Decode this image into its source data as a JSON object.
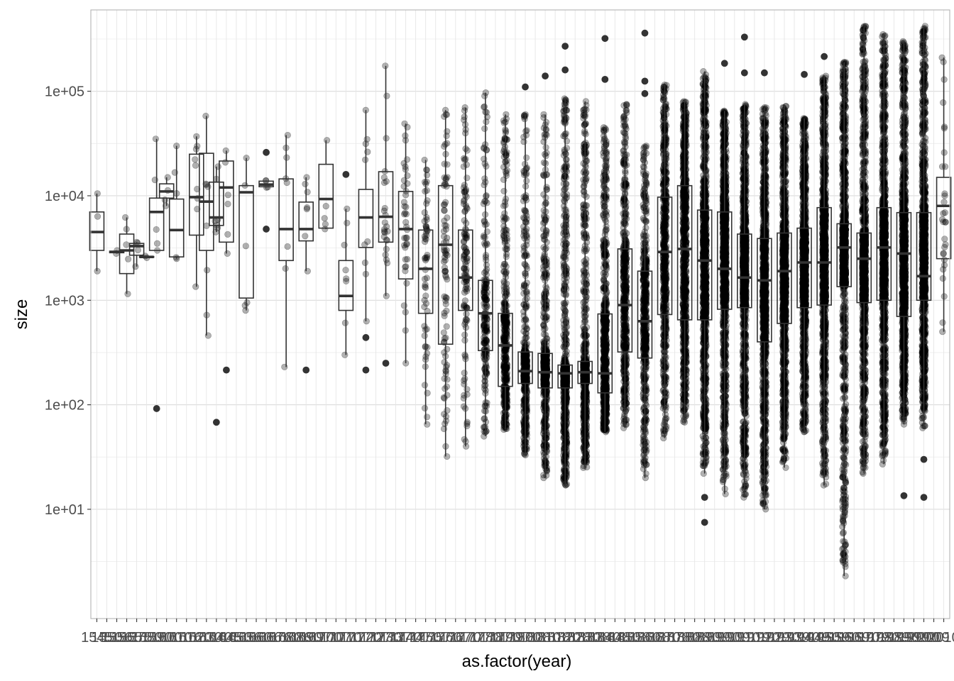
{
  "chart_data": {
    "type": "boxplot",
    "xlabel": "as.factor(year)",
    "ylabel": "size",
    "y_scale": "log10",
    "y_ticks": [
      "1e+01",
      "1e+02",
      "1e+03",
      "1e+04",
      "1e+05"
    ],
    "y_tick_values": [
      10,
      100,
      1000,
      10000,
      100000
    ],
    "ylim": [
      0.9,
      600000
    ],
    "categories": [
      "1545",
      "1550",
      "1556",
      "1565",
      "1575",
      "1580",
      "1590",
      "1600",
      "1610",
      "1616",
      "1620",
      "1630",
      "1640",
      "1645",
      "1650",
      "1656",
      "1660",
      "1666",
      "1676",
      "1680",
      "1686",
      "1690",
      "1697",
      "1700",
      "1707",
      "1710",
      "1717",
      "1720",
      "1727",
      "1730",
      "1737",
      "1740",
      "1747",
      "1750",
      "1757",
      "1760",
      "1767",
      "1770",
      "1777",
      "1780",
      "1787",
      "1790",
      "1797",
      "1800",
      "1808",
      "1810",
      "1818",
      "1820",
      "1828",
      "1830",
      "1838",
      "1840",
      "1848",
      "1850",
      "1858",
      "1860",
      "1868",
      "1870",
      "1878",
      "1880",
      "1888",
      "1890",
      "1899",
      "1900",
      "1909",
      "1910",
      "1919",
      "1920",
      "1929",
      "1930",
      "1939",
      "1940",
      "1949",
      "1950",
      "1959",
      "1960",
      "1969",
      "1970",
      "1979",
      "1980",
      "1989",
      "1990",
      "1999",
      "2000",
      "2009",
      "2010"
    ],
    "boxes": [
      {
        "x": "1545",
        "lower": 1900,
        "q1": 3000,
        "median": 4500,
        "q3": 7000,
        "upper": 10500,
        "n_points": 3,
        "outliers": []
      },
      {
        "x": "1556",
        "lower": 2800,
        "q1": 2850,
        "median": 2900,
        "q3": 2950,
        "upper": 3000,
        "n_points": 2,
        "outliers": []
      },
      {
        "x": "1565",
        "lower": 1150,
        "q1": 1800,
        "median": 3000,
        "q3": 4300,
        "upper": 6200,
        "n_points": 5,
        "outliers": []
      },
      {
        "x": "1575",
        "lower": 2100,
        "q1": 2700,
        "median": 3300,
        "q3": 3500,
        "upper": 3600,
        "n_points": 4,
        "outliers": []
      },
      {
        "x": "1580",
        "lower": 2550,
        "q1": 2580,
        "median": 2600,
        "q3": 2620,
        "upper": 2650,
        "n_points": 2,
        "outliers": []
      },
      {
        "x": "1590",
        "lower": 3000,
        "q1": 3000,
        "median": 7000,
        "q3": 9500,
        "upper": 35000,
        "n_points": 5,
        "outliers": [
          92
        ]
      },
      {
        "x": "1600",
        "lower": 8000,
        "q1": 9500,
        "median": 11000,
        "q3": 13000,
        "upper": 15000,
        "n_points": 4,
        "outliers": []
      },
      {
        "x": "1610",
        "lower": 2500,
        "q1": 2600,
        "median": 4700,
        "q3": 9300,
        "upper": 30000,
        "n_points": 5,
        "outliers": []
      },
      {
        "x": "1620",
        "lower": 1350,
        "q1": 4200,
        "median": 9700,
        "q3": 25000,
        "upper": 37000,
        "n_points": 9,
        "outliers": []
      },
      {
        "x": "1630",
        "lower": 460,
        "q1": 3000,
        "median": 8800,
        "q3": 25500,
        "upper": 58000,
        "n_points": 8,
        "outliers": []
      },
      {
        "x": "1640",
        "lower": 4500,
        "q1": 5200,
        "median": 6200,
        "q3": 13500,
        "upper": 19000,
        "n_points": 7,
        "outliers": [
          68
        ]
      },
      {
        "x": "1645",
        "lower": 2800,
        "q1": 3600,
        "median": 12000,
        "q3": 21500,
        "upper": 27000,
        "n_points": 6,
        "outliers": [
          215
        ]
      },
      {
        "x": "1656",
        "lower": 800,
        "q1": 1050,
        "median": 10800,
        "q3": 12500,
        "upper": 23000,
        "n_points": 6,
        "outliers": []
      },
      {
        "x": "1666",
        "lower": 12000,
        "q1": 12200,
        "median": 12800,
        "q3": 13800,
        "upper": 14000,
        "n_points": 4,
        "outliers": [
          4800,
          26000
        ]
      },
      {
        "x": "1680",
        "lower": 230,
        "q1": 2400,
        "median": 4800,
        "q3": 14500,
        "upper": 38000,
        "n_points": 8,
        "outliers": []
      },
      {
        "x": "1690",
        "lower": 1900,
        "q1": 3700,
        "median": 4800,
        "q3": 8700,
        "upper": 15000,
        "n_points": 7,
        "outliers": [
          215
        ]
      },
      {
        "x": "1700",
        "lower": 4800,
        "q1": 4900,
        "median": 9300,
        "q3": 20000,
        "upper": 34000,
        "n_points": 5,
        "outliers": []
      },
      {
        "x": "1710",
        "lower": 300,
        "q1": 800,
        "median": 1100,
        "q3": 2400,
        "upper": 7500,
        "n_points": 8,
        "outliers": [
          16000
        ]
      },
      {
        "x": "1720",
        "lower": 630,
        "q1": 3200,
        "median": 6200,
        "q3": 11500,
        "upper": 66000,
        "n_points": 10,
        "outliers": [
          215,
          440
        ]
      },
      {
        "x": "1730",
        "lower": 1100,
        "q1": 3600,
        "median": 6300,
        "q3": 17000,
        "upper": 175000,
        "n_points": 24,
        "outliers": [
          250
        ]
      },
      {
        "x": "1740",
        "lower": 250,
        "q1": 1600,
        "median": 4800,
        "q3": 11000,
        "upper": 49000,
        "n_points": 40,
        "outliers": []
      },
      {
        "x": "1750",
        "lower": 65,
        "q1": 750,
        "median": 2000,
        "q3": 4700,
        "upper": 22000,
        "n_points": 60,
        "outliers": []
      },
      {
        "x": "1760",
        "lower": 32,
        "q1": 380,
        "median": 3400,
        "q3": 12500,
        "upper": 66000,
        "n_points": 90,
        "outliers": []
      },
      {
        "x": "1770",
        "lower": 40,
        "q1": 800,
        "median": 1650,
        "q3": 4700,
        "upper": 70000,
        "n_points": 120,
        "outliers": []
      },
      {
        "x": "1780",
        "lower": 50,
        "q1": 330,
        "median": 750,
        "q3": 1550,
        "upper": 97000,
        "n_points": 200,
        "outliers": []
      },
      {
        "x": "1790",
        "lower": 58,
        "q1": 150,
        "median": 370,
        "q3": 750,
        "upper": 60000,
        "n_points": 400,
        "outliers": []
      },
      {
        "x": "1800",
        "lower": 33,
        "q1": 160,
        "median": 210,
        "q3": 320,
        "upper": 60000,
        "n_points": 500,
        "outliers": [
          110000
        ]
      },
      {
        "x": "1810",
        "lower": 20,
        "q1": 145,
        "median": 205,
        "q3": 310,
        "upper": 60000,
        "n_points": 600,
        "outliers": [
          140000
        ]
      },
      {
        "x": "1820",
        "lower": 17,
        "q1": 145,
        "median": 200,
        "q3": 240,
        "upper": 85000,
        "n_points": 900,
        "outliers": [
          160000,
          270000
        ]
      },
      {
        "x": "1830",
        "lower": 25,
        "q1": 160,
        "median": 205,
        "q3": 260,
        "upper": 80000,
        "n_points": 900,
        "outliers": []
      },
      {
        "x": "1840",
        "lower": 55,
        "q1": 130,
        "median": 200,
        "q3": 740,
        "upper": 45000,
        "n_points": 700,
        "outliers": [
          130000,
          320000
        ]
      },
      {
        "x": "1850",
        "lower": 60,
        "q1": 320,
        "median": 900,
        "q3": 3100,
        "upper": 75000,
        "n_points": 500,
        "outliers": []
      },
      {
        "x": "1860",
        "lower": 20,
        "q1": 280,
        "median": 630,
        "q3": 1900,
        "upper": 30000,
        "n_points": 500,
        "outliers": [
          95000,
          125000,
          360000
        ]
      },
      {
        "x": "1870",
        "lower": 48,
        "q1": 730,
        "median": 2900,
        "q3": 9700,
        "upper": 115000,
        "n_points": 600,
        "outliers": []
      },
      {
        "x": "1880",
        "lower": 68,
        "q1": 650,
        "median": 3100,
        "q3": 12500,
        "upper": 80000,
        "n_points": 800,
        "outliers": []
      },
      {
        "x": "1890",
        "lower": 22,
        "q1": 650,
        "median": 2400,
        "q3": 7300,
        "upper": 155000,
        "n_points": 1000,
        "outliers": [
          7.5,
          13
        ]
      },
      {
        "x": "1900",
        "lower": 14,
        "q1": 820,
        "median": 2000,
        "q3": 7000,
        "upper": 65000,
        "n_points": 1200,
        "outliers": [
          185000
        ]
      },
      {
        "x": "1910",
        "lower": 13,
        "q1": 850,
        "median": 1650,
        "q3": 4300,
        "upper": 75000,
        "n_points": 1200,
        "outliers": [
          150000,
          330000
        ]
      },
      {
        "x": "1920",
        "lower": 10,
        "q1": 400,
        "median": 1550,
        "q3": 3900,
        "upper": 70000,
        "n_points": 1200,
        "outliers": [
          150000
        ]
      },
      {
        "x": "1930",
        "lower": 25,
        "q1": 600,
        "median": 1900,
        "q3": 4400,
        "upper": 72000,
        "n_points": 1500,
        "outliers": []
      },
      {
        "x": "1940",
        "lower": 55,
        "q1": 850,
        "median": 2300,
        "q3": 4900,
        "upper": 55000,
        "n_points": 1800,
        "outliers": [
          145000
        ]
      },
      {
        "x": "1950",
        "lower": 17,
        "q1": 900,
        "median": 2300,
        "q3": 7700,
        "upper": 140000,
        "n_points": 2500,
        "outliers": [
          215000
        ]
      },
      {
        "x": "1960",
        "lower": 2.3,
        "q1": 1350,
        "median": 3200,
        "q3": 5400,
        "upper": 190000,
        "n_points": 3500,
        "outliers": []
      },
      {
        "x": "1970",
        "lower": 22,
        "q1": 950,
        "median": 2500,
        "q3": 4400,
        "upper": 420000,
        "n_points": 4000,
        "outliers": []
      },
      {
        "x": "1980",
        "lower": 27,
        "q1": 1000,
        "median": 3200,
        "q3": 7700,
        "upper": 350000,
        "n_points": 3500,
        "outliers": []
      },
      {
        "x": "1990",
        "lower": 65,
        "q1": 700,
        "median": 2800,
        "q3": 6900,
        "upper": 300000,
        "n_points": 3000,
        "outliers": [
          13.5
        ]
      },
      {
        "x": "2000",
        "lower": 60,
        "q1": 1000,
        "median": 1700,
        "q3": 6900,
        "upper": 420000,
        "n_points": 2500,
        "outliers": [
          13,
          30
        ]
      },
      {
        "x": "2010",
        "lower": 500,
        "q1": 2500,
        "median": 8000,
        "q3": 15000,
        "upper": 210000,
        "n_points": 30,
        "outliers": []
      }
    ]
  }
}
